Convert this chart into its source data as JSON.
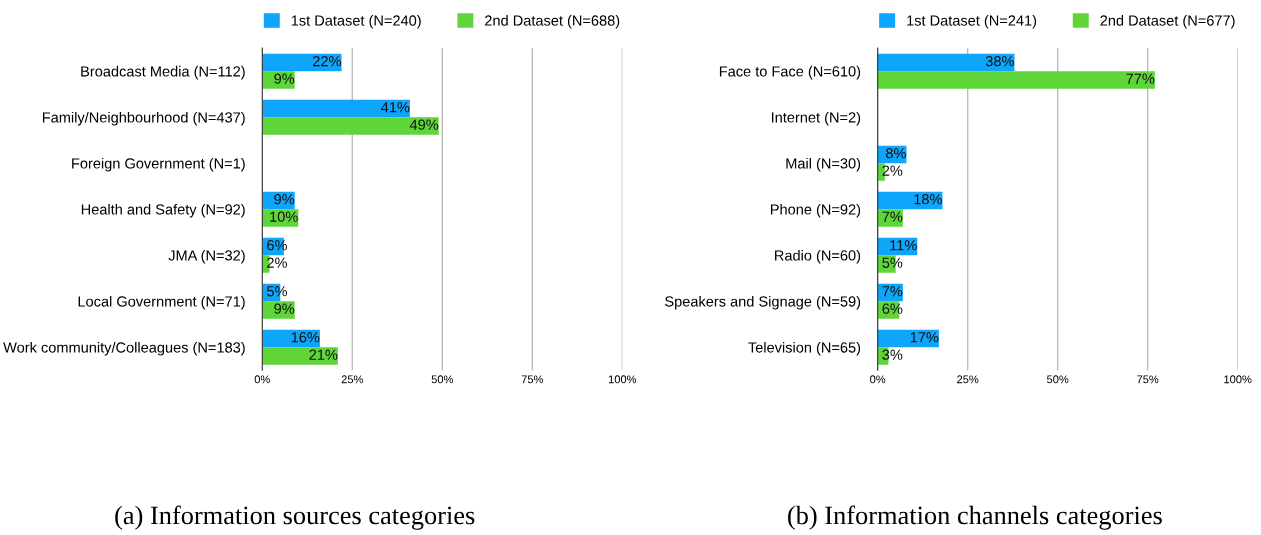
{
  "chart_data": [
    {
      "type": "bar",
      "orientation": "horizontal",
      "xlabel": "(a) Information sources categories",
      "categories": [
        "Broadcast Media (N=112)",
        "Family/Neighbourhood (N=437)",
        "Foreign Government (N=1)",
        "Health and Safety (N=92)",
        "JMA (N=32)",
        "Local Government (N=71)",
        "Work community/Colleagues (N=183)"
      ],
      "series": [
        {
          "name": "1st Dataset (N=240)",
          "color": "#0ea5fb",
          "values": [
            22,
            41,
            null,
            9,
            6,
            5,
            16
          ],
          "value_labels": [
            "22%",
            "41%",
            null,
            "9%",
            "6%",
            "5%",
            "16%"
          ]
        },
        {
          "name": "2nd Dataset (N=688)",
          "color": "#5fd53a",
          "values": [
            9,
            49,
            null,
            10,
            2,
            9,
            21
          ],
          "value_labels": [
            "9%",
            "49%",
            null,
            "10%",
            "2%",
            "9%",
            "21%"
          ]
        }
      ],
      "xlim": [
        0,
        100
      ],
      "xticks": [
        {
          "value": 0,
          "label": "0%"
        },
        {
          "value": 25,
          "label": "25%"
        },
        {
          "value": 50,
          "label": "50%"
        },
        {
          "value": 75,
          "label": "75%"
        },
        {
          "value": 100,
          "label": "100%"
        }
      ],
      "grid": "x",
      "legend": "top"
    },
    {
      "type": "bar",
      "orientation": "horizontal",
      "xlabel": "(b) Information channels categories",
      "categories": [
        "Face to Face (N=610)",
        "Internet (N=2)",
        "Mail (N=30)",
        "Phone (N=92)",
        "Radio (N=60)",
        "Speakers and Signage (N=59)",
        "Television (N=65)"
      ],
      "series": [
        {
          "name": "1st Dataset (N=241)",
          "color": "#0ea5fb",
          "values": [
            38,
            null,
            8,
            18,
            11,
            7,
            17
          ],
          "value_labels": [
            "38%",
            null,
            "8%",
            "18%",
            "11%",
            "7%",
            "17%"
          ]
        },
        {
          "name": "2nd Dataset (N=677)",
          "color": "#5fd53a",
          "values": [
            77,
            null,
            2,
            7,
            5,
            6,
            3
          ],
          "value_labels": [
            "77%",
            null,
            "2%",
            "7%",
            "5%",
            "6%",
            "3%"
          ]
        }
      ],
      "xlim": [
        0,
        100
      ],
      "xticks": [
        {
          "value": 0,
          "label": "0%"
        },
        {
          "value": 25,
          "label": "25%"
        },
        {
          "value": 50,
          "label": "50%"
        },
        {
          "value": 75,
          "label": "75%"
        },
        {
          "value": 100,
          "label": "100%"
        }
      ],
      "grid": "x",
      "legend": "top"
    }
  ]
}
